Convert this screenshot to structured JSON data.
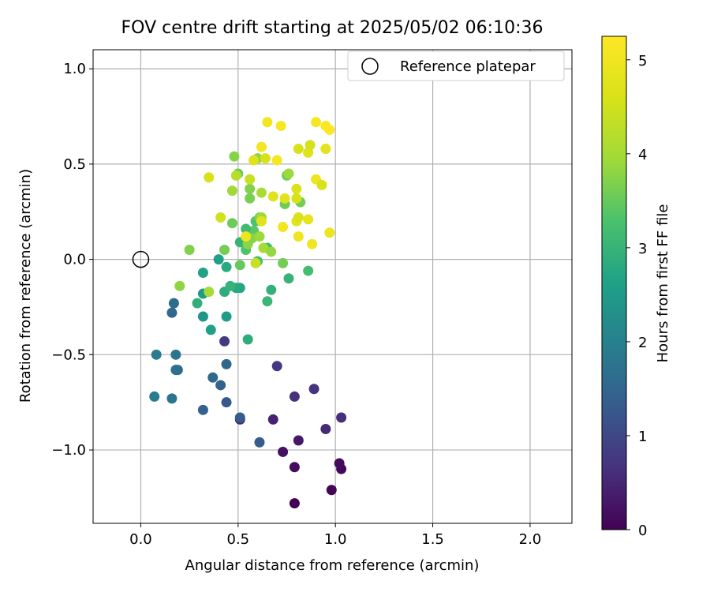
{
  "chart_data": {
    "type": "scatter",
    "title": "FOV centre drift starting at 2025/05/02 06:10:36",
    "xlabel": "Angular distance from reference (arcmin)",
    "ylabel": "Rotation from reference (arcmin)",
    "xlim": [
      -0.245,
      2.215
    ],
    "ylim": [
      -1.385,
      1.1
    ],
    "xticks": [
      0.0,
      0.5,
      1.0,
      1.5,
      2.0
    ],
    "xtick_labels": [
      "0.0",
      "0.5",
      "1.0",
      "1.5",
      "2.0"
    ],
    "yticks": [
      -1.0,
      -0.5,
      0.0,
      0.5,
      1.0
    ],
    "ytick_labels": [
      "−1.0",
      "−0.5",
      "0.0",
      "0.5",
      "1.0"
    ],
    "grid": true,
    "legend": {
      "placement": "top-right",
      "entries": [
        "Reference platepar"
      ]
    },
    "reference_point": {
      "x": 0.0,
      "y": 0.0
    },
    "colorbar": {
      "label": "Hours from first FF file",
      "range": [
        0,
        5.25
      ],
      "ticks": [
        0,
        1,
        2,
        3,
        4,
        5
      ],
      "tick_labels": [
        "0",
        "1",
        "2",
        "3",
        "4",
        "5"
      ],
      "colormap": "viridis"
    },
    "points": [
      {
        "x": 0.79,
        "y": -1.28,
        "t": 0.0
      },
      {
        "x": 0.98,
        "y": -1.21,
        "t": 0.05
      },
      {
        "x": 1.03,
        "y": -1.1,
        "t": 0.1
      },
      {
        "x": 1.02,
        "y": -1.07,
        "t": 0.12
      },
      {
        "x": 0.79,
        "y": -1.09,
        "t": 0.15
      },
      {
        "x": 0.73,
        "y": -1.01,
        "t": 0.2
      },
      {
        "x": 0.81,
        "y": -0.95,
        "t": 0.3
      },
      {
        "x": 0.51,
        "y": -0.84,
        "t": 0.55
      },
      {
        "x": 0.68,
        "y": -0.84,
        "t": 0.45
      },
      {
        "x": 0.95,
        "y": -0.89,
        "t": 0.55
      },
      {
        "x": 1.03,
        "y": -0.83,
        "t": 0.6
      },
      {
        "x": 0.79,
        "y": -0.72,
        "t": 0.65
      },
      {
        "x": 0.89,
        "y": -0.68,
        "t": 0.7
      },
      {
        "x": 0.7,
        "y": -0.56,
        "t": 0.75
      },
      {
        "x": 0.43,
        "y": -0.43,
        "t": 0.8
      },
      {
        "x": 0.61,
        "y": -0.96,
        "t": 1.3
      },
      {
        "x": 0.51,
        "y": -0.83,
        "t": 1.3
      },
      {
        "x": 0.44,
        "y": -0.75,
        "t": 1.25
      },
      {
        "x": 0.32,
        "y": -0.79,
        "t": 1.4
      },
      {
        "x": 0.41,
        "y": -0.66,
        "t": 1.45
      },
      {
        "x": 0.37,
        "y": -0.62,
        "t": 1.55
      },
      {
        "x": 0.44,
        "y": -0.55,
        "t": 1.5
      },
      {
        "x": 0.19,
        "y": -0.58,
        "t": 1.6
      },
      {
        "x": 0.18,
        "y": -0.58,
        "t": 1.65
      },
      {
        "x": 0.16,
        "y": -0.73,
        "t": 1.8
      },
      {
        "x": 0.07,
        "y": -0.72,
        "t": 1.9
      },
      {
        "x": 0.08,
        "y": -0.5,
        "t": 1.9
      },
      {
        "x": 0.18,
        "y": -0.5,
        "t": 1.8
      },
      {
        "x": 0.16,
        "y": -0.28,
        "t": 1.55
      },
      {
        "x": 0.17,
        "y": -0.23,
        "t": 1.6
      },
      {
        "x": 0.55,
        "y": -0.42,
        "t": 2.85
      },
      {
        "x": 0.36,
        "y": -0.37,
        "t": 2.6
      },
      {
        "x": 0.44,
        "y": -0.3,
        "t": 2.55
      },
      {
        "x": 0.32,
        "y": -0.3,
        "t": 2.4
      },
      {
        "x": 0.29,
        "y": -0.23,
        "t": 2.9
      },
      {
        "x": 0.32,
        "y": -0.18,
        "t": 2.5
      },
      {
        "x": 0.43,
        "y": -0.17,
        "t": 2.85
      },
      {
        "x": 0.32,
        "y": -0.07,
        "t": 2.65
      },
      {
        "x": 0.44,
        "y": -0.04,
        "t": 2.8
      },
      {
        "x": 0.4,
        "y": 0.0,
        "t": 2.6
      },
      {
        "x": 0.51,
        "y": -0.15,
        "t": 2.7
      },
      {
        "x": 0.49,
        "y": -0.15,
        "t": 2.75
      },
      {
        "x": 0.46,
        "y": -0.14,
        "t": 3.0
      },
      {
        "x": 0.65,
        "y": -0.22,
        "t": 3.05
      },
      {
        "x": 0.67,
        "y": -0.16,
        "t": 2.95
      },
      {
        "x": 0.76,
        "y": -0.1,
        "t": 3.0
      },
      {
        "x": 0.86,
        "y": -0.06,
        "t": 3.2
      },
      {
        "x": 0.73,
        "y": -0.02,
        "t": 3.6
      },
      {
        "x": 0.6,
        "y": -0.01,
        "t": 3.2
      },
      {
        "x": 0.54,
        "y": 0.05,
        "t": 3.3
      },
      {
        "x": 0.65,
        "y": 0.06,
        "t": 3.1
      },
      {
        "x": 0.51,
        "y": 0.09,
        "t": 3.0
      },
      {
        "x": 0.51,
        "y": -0.03,
        "t": 3.5
      },
      {
        "x": 0.58,
        "y": 0.15,
        "t": 3.4
      },
      {
        "x": 0.54,
        "y": 0.16,
        "t": 3.15
      },
      {
        "x": 0.59,
        "y": 0.2,
        "t": 3.3
      },
      {
        "x": 0.47,
        "y": 0.19,
        "t": 3.55
      },
      {
        "x": 0.25,
        "y": 0.05,
        "t": 3.7
      },
      {
        "x": 0.43,
        "y": 0.05,
        "t": 3.6
      },
      {
        "x": 0.2,
        "y": -0.14,
        "t": 3.8
      },
      {
        "x": 0.35,
        "y": -0.17,
        "t": 4.0
      },
      {
        "x": 0.55,
        "y": 0.08,
        "t": 3.8
      },
      {
        "x": 0.57,
        "y": 0.11,
        "t": 3.75
      },
      {
        "x": 0.61,
        "y": 0.12,
        "t": 3.9
      },
      {
        "x": 0.63,
        "y": 0.06,
        "t": 4.0
      },
      {
        "x": 0.67,
        "y": 0.04,
        "t": 3.85
      },
      {
        "x": 0.61,
        "y": 0.22,
        "t": 3.7
      },
      {
        "x": 0.62,
        "y": 0.22,
        "t": 3.9
      },
      {
        "x": 0.56,
        "y": 0.32,
        "t": 3.65
      },
      {
        "x": 0.56,
        "y": 0.37,
        "t": 3.7
      },
      {
        "x": 0.47,
        "y": 0.36,
        "t": 3.95
      },
      {
        "x": 0.62,
        "y": 0.35,
        "t": 4.05
      },
      {
        "x": 0.74,
        "y": 0.29,
        "t": 3.55
      },
      {
        "x": 0.82,
        "y": 0.3,
        "t": 3.6
      },
      {
        "x": 0.75,
        "y": 0.44,
        "t": 3.6
      },
      {
        "x": 0.76,
        "y": 0.45,
        "t": 3.9
      },
      {
        "x": 0.48,
        "y": 0.54,
        "t": 3.75
      },
      {
        "x": 0.5,
        "y": 0.45,
        "t": 3.55
      },
      {
        "x": 0.6,
        "y": 0.53,
        "t": 3.8
      },
      {
        "x": 0.49,
        "y": 0.44,
        "t": 4.2
      },
      {
        "x": 0.35,
        "y": 0.43,
        "t": 4.6
      },
      {
        "x": 0.56,
        "y": 0.42,
        "t": 4.4
      },
      {
        "x": 0.41,
        "y": 0.22,
        "t": 4.5
      },
      {
        "x": 0.59,
        "y": -0.02,
        "t": 4.4
      },
      {
        "x": 0.54,
        "y": 0.12,
        "t": 4.95
      },
      {
        "x": 0.62,
        "y": 0.2,
        "t": 4.7
      },
      {
        "x": 0.58,
        "y": 0.52,
        "t": 4.7
      },
      {
        "x": 0.64,
        "y": 0.53,
        "t": 4.6
      },
      {
        "x": 0.68,
        "y": 0.33,
        "t": 4.7
      },
      {
        "x": 0.74,
        "y": 0.32,
        "t": 4.75
      },
      {
        "x": 0.8,
        "y": 0.32,
        "t": 4.6
      },
      {
        "x": 0.8,
        "y": 0.2,
        "t": 4.8
      },
      {
        "x": 0.81,
        "y": 0.22,
        "t": 4.65
      },
      {
        "x": 0.8,
        "y": 0.37,
        "t": 4.65
      },
      {
        "x": 0.81,
        "y": 0.58,
        "t": 4.6
      },
      {
        "x": 0.86,
        "y": 0.56,
        "t": 4.7
      },
      {
        "x": 0.87,
        "y": 0.6,
        "t": 4.55
      },
      {
        "x": 0.9,
        "y": 0.42,
        "t": 4.95
      },
      {
        "x": 0.93,
        "y": 0.39,
        "t": 4.6
      },
      {
        "x": 0.95,
        "y": 0.58,
        "t": 5.0
      },
      {
        "x": 0.95,
        "y": 0.58,
        "t": 4.75
      },
      {
        "x": 0.73,
        "y": 0.17,
        "t": 5.05
      },
      {
        "x": 0.86,
        "y": 0.21,
        "t": 4.85
      },
      {
        "x": 0.81,
        "y": 0.12,
        "t": 4.95
      },
      {
        "x": 0.88,
        "y": 0.08,
        "t": 5.0
      },
      {
        "x": 0.97,
        "y": 0.14,
        "t": 4.95
      },
      {
        "x": 0.62,
        "y": 0.59,
        "t": 5.05
      },
      {
        "x": 0.7,
        "y": 0.52,
        "t": 5.1
      },
      {
        "x": 0.65,
        "y": 0.72,
        "t": 5.1
      },
      {
        "x": 0.72,
        "y": 0.7,
        "t": 5.15
      },
      {
        "x": 0.9,
        "y": 0.72,
        "t": 5.15
      },
      {
        "x": 0.95,
        "y": 0.7,
        "t": 5.2
      },
      {
        "x": 0.97,
        "y": 0.68,
        "t": 5.25
      }
    ]
  }
}
